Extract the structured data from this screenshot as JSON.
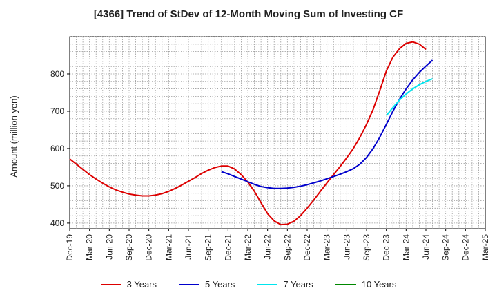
{
  "chart_data": {
    "type": "line",
    "title": "[4366]  Trend of StDev of 12-Month Moving Sum of Investing CF",
    "xlabel": "",
    "ylabel": "Amount (million yen)",
    "ylim": [
      385,
      900
    ],
    "yticks": [
      400,
      500,
      600,
      700,
      800
    ],
    "x_tick_labels": [
      "Dec-19",
      "Mar-20",
      "Jun-20",
      "Sep-20",
      "Dec-20",
      "Mar-21",
      "Jun-21",
      "Sep-21",
      "Dec-21",
      "Mar-22",
      "Jun-22",
      "Sep-22",
      "Dec-22",
      "Mar-23",
      "Jun-23",
      "Sep-23",
      "Dec-23",
      "Mar-24",
      "Jun-24",
      "Sep-24",
      "Dec-24",
      "Mar-25"
    ],
    "x_range": [
      "2019-12",
      "2025-03"
    ],
    "grid": true,
    "legend_position": "bottom",
    "series": [
      {
        "name": "3 Years",
        "color": "#dd0000",
        "points": [
          [
            "2019-12",
            572
          ],
          [
            "2020-01",
            558
          ],
          [
            "2020-02",
            544
          ],
          [
            "2020-03",
            530
          ],
          [
            "2020-04",
            518
          ],
          [
            "2020-05",
            507
          ],
          [
            "2020-06",
            497
          ],
          [
            "2020-07",
            489
          ],
          [
            "2020-08",
            483
          ],
          [
            "2020-09",
            478
          ],
          [
            "2020-10",
            475
          ],
          [
            "2020-11",
            473
          ],
          [
            "2020-12",
            473
          ],
          [
            "2021-01",
            475
          ],
          [
            "2021-02",
            479
          ],
          [
            "2021-03",
            485
          ],
          [
            "2021-04",
            493
          ],
          [
            "2021-05",
            502
          ],
          [
            "2021-06",
            512
          ],
          [
            "2021-07",
            522
          ],
          [
            "2021-08",
            533
          ],
          [
            "2021-09",
            542
          ],
          [
            "2021-10",
            549
          ],
          [
            "2021-11",
            553
          ],
          [
            "2021-12",
            553
          ],
          [
            "2022-01",
            545
          ],
          [
            "2022-02",
            530
          ],
          [
            "2022-03",
            510
          ],
          [
            "2022-04",
            485
          ],
          [
            "2022-05",
            455
          ],
          [
            "2022-06",
            425
          ],
          [
            "2022-07",
            406
          ],
          [
            "2022-08",
            396
          ],
          [
            "2022-09",
            397
          ],
          [
            "2022-10",
            405
          ],
          [
            "2022-11",
            420
          ],
          [
            "2022-12",
            440
          ],
          [
            "2023-01",
            462
          ],
          [
            "2023-02",
            485
          ],
          [
            "2023-03",
            508
          ],
          [
            "2023-04",
            530
          ],
          [
            "2023-05",
            552
          ],
          [
            "2023-06",
            575
          ],
          [
            "2023-07",
            600
          ],
          [
            "2023-08",
            630
          ],
          [
            "2023-09",
            665
          ],
          [
            "2023-10",
            705
          ],
          [
            "2023-11",
            755
          ],
          [
            "2023-12",
            808
          ],
          [
            "2024-01",
            845
          ],
          [
            "2024-02",
            868
          ],
          [
            "2024-03",
            882
          ],
          [
            "2024-04",
            886
          ],
          [
            "2024-05",
            880
          ],
          [
            "2024-06",
            866
          ]
        ]
      },
      {
        "name": "5 Years",
        "color": "#0000cc",
        "points": [
          [
            "2021-11",
            538
          ],
          [
            "2021-12",
            532
          ],
          [
            "2022-01",
            525
          ],
          [
            "2022-02",
            518
          ],
          [
            "2022-03",
            511
          ],
          [
            "2022-04",
            504
          ],
          [
            "2022-05",
            498
          ],
          [
            "2022-06",
            495
          ],
          [
            "2022-07",
            493
          ],
          [
            "2022-08",
            493
          ],
          [
            "2022-09",
            494
          ],
          [
            "2022-10",
            496
          ],
          [
            "2022-11",
            499
          ],
          [
            "2022-12",
            503
          ],
          [
            "2023-01",
            508
          ],
          [
            "2023-02",
            513
          ],
          [
            "2023-03",
            519
          ],
          [
            "2023-04",
            525
          ],
          [
            "2023-05",
            531
          ],
          [
            "2023-06",
            538
          ],
          [
            "2023-07",
            546
          ],
          [
            "2023-08",
            558
          ],
          [
            "2023-09",
            576
          ],
          [
            "2023-10",
            600
          ],
          [
            "2023-11",
            630
          ],
          [
            "2023-12",
            665
          ],
          [
            "2024-01",
            700
          ],
          [
            "2024-02",
            732
          ],
          [
            "2024-03",
            760
          ],
          [
            "2024-04",
            784
          ],
          [
            "2024-05",
            804
          ],
          [
            "2024-06",
            821
          ],
          [
            "2024-07",
            837
          ]
        ]
      },
      {
        "name": "7 Years",
        "color": "#00e5ee",
        "points": [
          [
            "2023-12",
            688
          ],
          [
            "2024-01",
            710
          ],
          [
            "2024-02",
            730
          ],
          [
            "2024-03",
            746
          ],
          [
            "2024-04",
            760
          ],
          [
            "2024-05",
            771
          ],
          [
            "2024-06",
            780
          ],
          [
            "2024-07",
            787
          ]
        ]
      },
      {
        "name": "10 Years",
        "color": "#008800",
        "points": []
      }
    ]
  }
}
